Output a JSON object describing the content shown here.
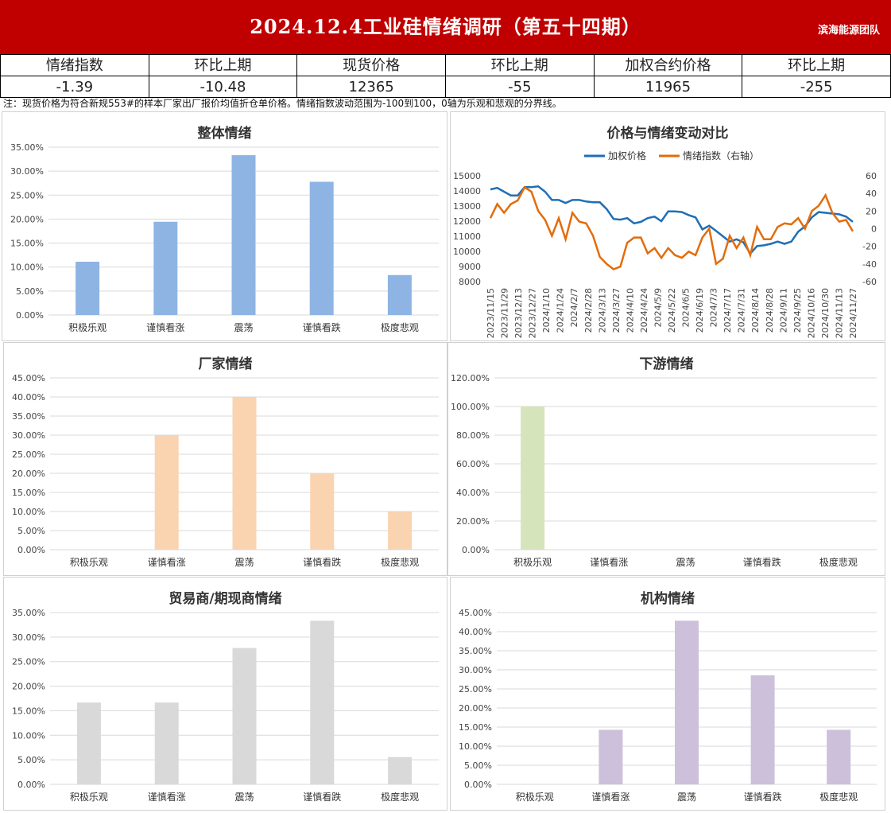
{
  "header": {
    "title": "2024.12.4工业硅情绪调研（第五十四期）",
    "team": "滨海能源团队"
  },
  "summary": {
    "labels": [
      "情绪指数",
      "环比上期",
      "现货价格",
      "环比上期",
      "加权合约价格",
      "环比上期"
    ],
    "values": [
      "-1.39",
      "-10.48",
      "12365",
      "-55",
      "11965",
      "-255"
    ]
  },
  "note": "注：现货价格为符合新规553#的样本厂家出厂报价均值折仓单价格。情绪指数波动范围为-100到100，0轴为乐观和悲观的分界线。",
  "colors": {
    "banner": "#c00000",
    "overall": "#8eb4e3",
    "factory": "#fad3b1",
    "downstream": "#d6e4bc",
    "trader": "#d9d9d9",
    "institution": "#ccc0da",
    "price_line": "#1f6fb7",
    "sentiment_line": "#e36c0a"
  },
  "chart_data": [
    {
      "id": "overall",
      "type": "bar",
      "title": "整体情绪",
      "categories": [
        "积极乐观",
        "谨慎看涨",
        "震荡",
        "谨慎看跌",
        "极度悲观"
      ],
      "values": [
        11.11,
        19.44,
        33.33,
        27.78,
        8.33
      ],
      "ylim": [
        0,
        35
      ],
      "yticks": [
        0,
        5,
        10,
        15,
        20,
        25,
        30,
        35
      ],
      "ytick_labels": [
        "0.00%",
        "5.00%",
        "10.00%",
        "15.00%",
        "20.00%",
        "25.00%",
        "30.00%",
        "35.00%"
      ],
      "grid": true
    },
    {
      "id": "price_vs_sentiment",
      "type": "line",
      "title": "价格与情绪变动对比",
      "legend": [
        "加权价格",
        "情绪指数（右轴）"
      ],
      "legend_position": "top",
      "x_tick_labels": [
        "2023/11/15",
        "2023/11/29",
        "2023/12/13",
        "2023/12/27",
        "2024/1/10",
        "2024/1/24",
        "2024/2/7",
        "2024/2/28",
        "2024/3/13",
        "2024/3/27",
        "2024/4/10",
        "2024/4/24",
        "2024/5/9",
        "2024/5/22",
        "2024/6/5",
        "2024/6/19",
        "2024/7/3",
        "2024/7/17",
        "2024/7/31",
        "2024/8/14",
        "2024/8/28",
        "2024/9/11",
        "2024/9/25",
        "2024/10/16",
        "2024/10/30",
        "2024/11/13",
        "2024/11/27"
      ],
      "y_left_ticks": [
        8000,
        9000,
        10000,
        11000,
        12000,
        13000,
        14000,
        15000
      ],
      "y_right_ticks": [
        -60,
        -40,
        -20,
        0,
        20,
        40,
        60
      ],
      "ylim_left": [
        8000,
        15000
      ],
      "ylim_right": [
        -60,
        60
      ],
      "series": [
        {
          "name": "加权价格",
          "axis": "left",
          "values": [
            14100,
            14200,
            13950,
            13700,
            13700,
            14250,
            14250,
            14300,
            13950,
            13400,
            13400,
            13200,
            13400,
            13400,
            13300,
            13250,
            13250,
            12800,
            12150,
            12100,
            12200,
            11850,
            11950,
            12200,
            12300,
            12000,
            12650,
            12650,
            12600,
            12400,
            12250,
            11450,
            11700,
            11350,
            11000,
            10650,
            10800,
            10600,
            9850,
            10350,
            10400,
            10500,
            10650,
            10500,
            10650,
            11300,
            11650,
            12250,
            12600,
            12550,
            12500,
            12450,
            12300,
            11950
          ]
        },
        {
          "name": "情绪指数（右轴）",
          "axis": "right",
          "values": [
            12,
            28,
            18,
            28,
            32,
            47,
            42,
            20,
            10,
            -8,
            12,
            -12,
            18,
            8,
            6,
            -8,
            -32,
            -40,
            -46,
            -43,
            -16,
            -10,
            -10,
            -28,
            -22,
            -33,
            -22,
            -30,
            -33,
            -26,
            -30,
            -10,
            0,
            -40,
            -34,
            -8,
            -22,
            -10,
            -30,
            2,
            -12,
            -12,
            2,
            6,
            5,
            12,
            0,
            20,
            26,
            38,
            18,
            8,
            10,
            -3
          ]
        }
      ]
    },
    {
      "id": "factory",
      "type": "bar",
      "title": "厂家情绪",
      "categories": [
        "积极乐观",
        "谨慎看涨",
        "震荡",
        "谨慎看跌",
        "极度悲观"
      ],
      "values": [
        0,
        30,
        40,
        20,
        10
      ],
      "ylim": [
        0,
        45
      ],
      "yticks": [
        0,
        5,
        10,
        15,
        20,
        25,
        30,
        35,
        40,
        45
      ],
      "ytick_labels": [
        "0.00%",
        "5.00%",
        "10.00%",
        "15.00%",
        "20.00%",
        "25.00%",
        "30.00%",
        "35.00%",
        "40.00%",
        "45.00%"
      ],
      "grid": true
    },
    {
      "id": "downstream",
      "type": "bar",
      "title": "下游情绪",
      "categories": [
        "积极乐观",
        "谨慎看涨",
        "震荡",
        "谨慎看跌",
        "极度悲观"
      ],
      "values": [
        100,
        0,
        0,
        0,
        0
      ],
      "ylim": [
        0,
        120
      ],
      "yticks": [
        0,
        20,
        40,
        60,
        80,
        100,
        120
      ],
      "ytick_labels": [
        "0.00%",
        "20.00%",
        "40.00%",
        "60.00%",
        "80.00%",
        "100.00%",
        "120.00%"
      ],
      "grid": true
    },
    {
      "id": "trader",
      "type": "bar",
      "title": "贸易商/期现商情绪",
      "categories": [
        "积极乐观",
        "谨慎看涨",
        "震荡",
        "谨慎看跌",
        "极度悲观"
      ],
      "values": [
        16.67,
        16.67,
        27.78,
        33.33,
        5.56
      ],
      "ylim": [
        0,
        35
      ],
      "yticks": [
        0,
        5,
        10,
        15,
        20,
        25,
        30,
        35
      ],
      "ytick_labels": [
        "0.00%",
        "5.00%",
        "10.00%",
        "15.00%",
        "20.00%",
        "25.00%",
        "30.00%",
        "35.00%"
      ],
      "grid": true
    },
    {
      "id": "institution",
      "type": "bar",
      "title": "机构情绪",
      "categories": [
        "积极乐观",
        "谨慎看涨",
        "震荡",
        "谨慎看跌",
        "极度悲观"
      ],
      "values": [
        0,
        14.29,
        42.86,
        28.57,
        14.29
      ],
      "ylim": [
        0,
        45
      ],
      "yticks": [
        0,
        5,
        10,
        15,
        20,
        25,
        30,
        35,
        40,
        45
      ],
      "ytick_labels": [
        "0.00%",
        "5.00%",
        "10.00%",
        "15.00%",
        "20.00%",
        "25.00%",
        "30.00%",
        "35.00%",
        "40.00%",
        "45.00%"
      ],
      "grid": true
    }
  ]
}
